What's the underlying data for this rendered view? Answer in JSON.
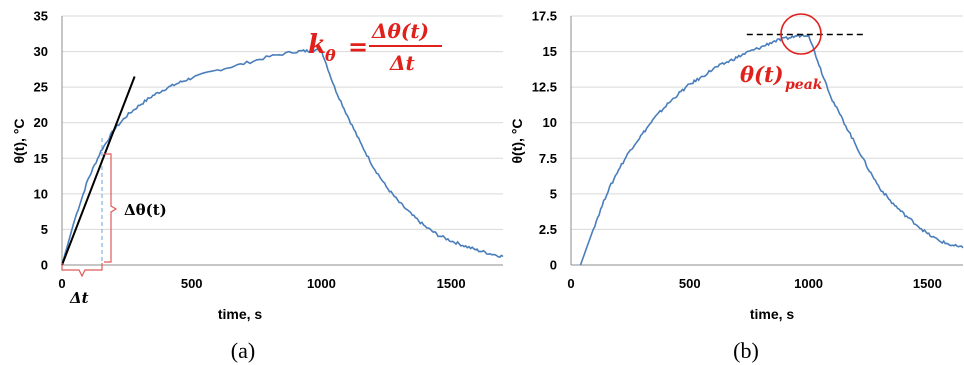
{
  "chart_data": [
    {
      "type": "line",
      "panel_label": "(a)",
      "xlabel": "time, s",
      "ylabel": "θ(t), °C",
      "xlim": [
        0,
        1700
      ],
      "ylim": [
        0,
        35
      ],
      "x_ticks": [
        "0",
        "500",
        "1000",
        "1500"
      ],
      "y_ticks": [
        "0",
        "5",
        "10",
        "15",
        "20",
        "25",
        "30",
        "35"
      ],
      "grid": "horizontal",
      "series": [
        {
          "color": "#4a7ebb",
          "x": [
            0,
            50,
            100,
            150,
            200,
            250,
            300,
            350,
            400,
            450,
            500,
            600,
            700,
            800,
            900,
            950,
            1000,
            1050,
            1100,
            1150,
            1200,
            1250,
            1300,
            1350,
            1400,
            1450,
            1500,
            1550,
            1600,
            1650,
            1700
          ],
          "y": [
            0,
            6.5,
            12,
            16,
            19,
            21,
            22.5,
            23.8,
            24.8,
            25.6,
            26.3,
            27.4,
            28.3,
            29.3,
            30,
            30.1,
            30.2,
            25,
            21,
            17.2,
            13.8,
            11,
            8.8,
            7,
            5.4,
            4.2,
            3.4,
            2.7,
            2.1,
            1.6,
            1.2
          ]
        }
      ],
      "tangent_line": {
        "color": "#000000",
        "x": [
          0,
          280
        ],
        "y": [
          0,
          26.5
        ]
      },
      "annotations": {
        "slope_lhs": "k",
        "slope_sub": "θ",
        "slope_eq": "=",
        "slope_numerator": "Δθ(t)",
        "slope_denominator": "Δt",
        "delta_theta": "Δθ(t)",
        "delta_t": "Δt"
      }
    },
    {
      "type": "line",
      "panel_label": "(b)",
      "xlabel": "time, s",
      "ylabel": "θ(t), °C",
      "xlim": [
        0,
        1650
      ],
      "ylim": [
        0,
        17.5
      ],
      "x_ticks": [
        "0",
        "500",
        "1000",
        "1500"
      ],
      "y_ticks": [
        "0",
        "2.5",
        "5",
        "7.5",
        "10",
        "12.5",
        "15",
        "17.5"
      ],
      "grid": "horizontal",
      "series": [
        {
          "color": "#4a7ebb",
          "x": [
            40,
            100,
            150,
            200,
            250,
            300,
            350,
            400,
            450,
            500,
            550,
            600,
            650,
            700,
            750,
            800,
            850,
            900,
            950,
            1000,
            1050,
            1100,
            1150,
            1200,
            1250,
            1300,
            1350,
            1400,
            1450,
            1500,
            1550,
            1600,
            1650
          ],
          "y": [
            0,
            2.8,
            5,
            6.7,
            8.1,
            9.2,
            10.3,
            11.2,
            12,
            12.7,
            13.2,
            13.8,
            14.2,
            14.6,
            15,
            15.3,
            15.7,
            15.9,
            16.1,
            16.2,
            13.8,
            11.6,
            10,
            8.4,
            6.8,
            5.4,
            4.4,
            3.6,
            2.9,
            2.2,
            1.7,
            1.4,
            1.2
          ]
        }
      ],
      "peak_line": {
        "color": "#000000",
        "x": [
          740,
          1230
        ],
        "y": [
          16.2,
          16.2
        ]
      },
      "annotations": {
        "peak_label": "θ(t)",
        "peak_sub": "peak"
      }
    }
  ]
}
